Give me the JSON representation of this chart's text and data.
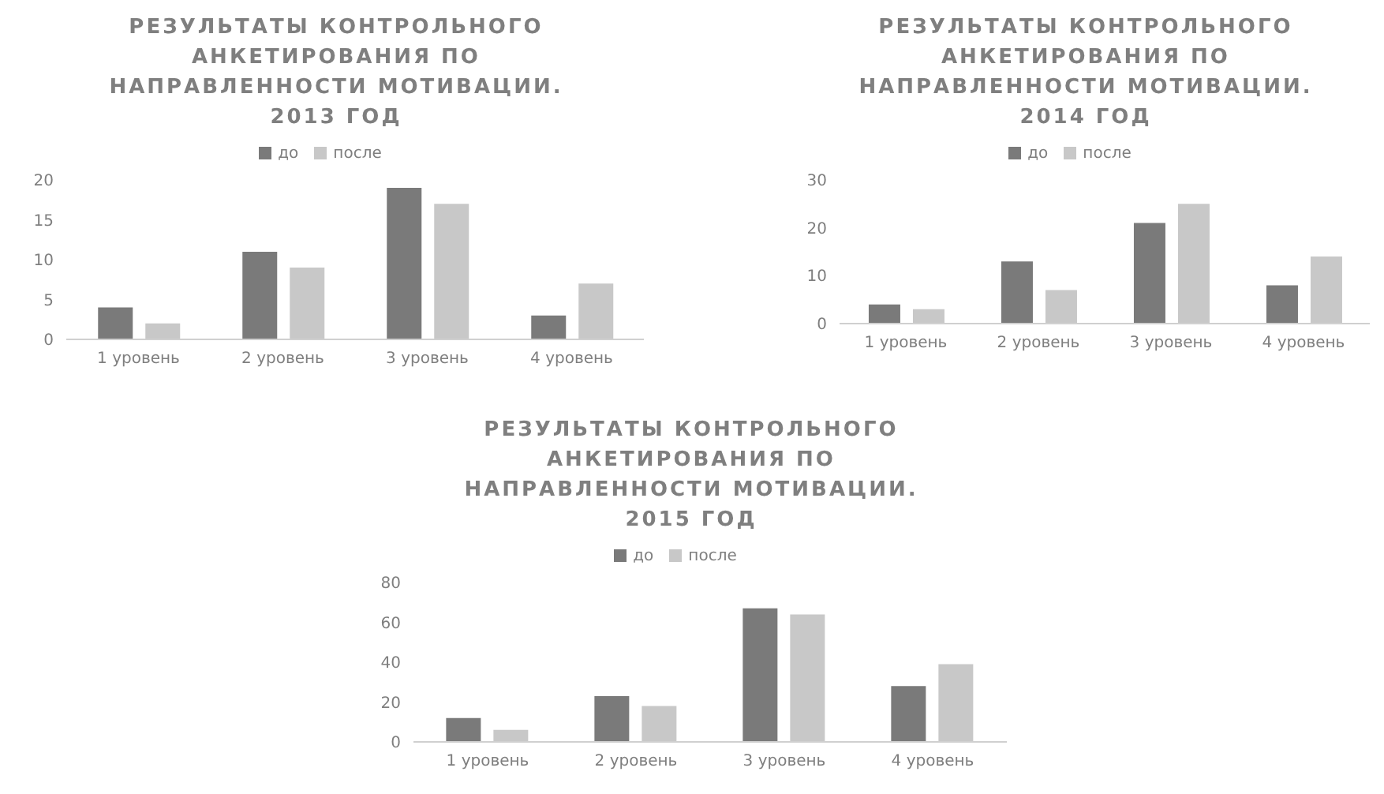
{
  "chart_data": [
    {
      "type": "bar",
      "title": "РЕЗУЛЬТАТЫ КОНТРОЛЬНОГО АНКЕТИРОВАНИЯ ПО НАПРАВЛЕННОСТИ МОТИВАЦИИ. 2013 ГОД",
      "categories": [
        "1 уровень",
        "2 уровень",
        "3 уровень",
        "4 уровень"
      ],
      "series": [
        {
          "name": "до",
          "color": "#7a7a7a",
          "values": [
            4,
            11,
            19,
            3
          ]
        },
        {
          "name": "после",
          "color": "#c8c8c8",
          "values": [
            2,
            9,
            17,
            7
          ]
        }
      ],
      "ylim": [
        0,
        20
      ],
      "yticks": [
        0,
        5,
        10,
        15,
        20
      ],
      "grid": false,
      "legend": "top"
    },
    {
      "type": "bar",
      "title": "РЕЗУЛЬТАТЫ КОНТРОЛЬНОГО АНКЕТИРОВАНИЯ ПО НАПРАВЛЕННОСТИ МОТИВАЦИИ. 2014 ГОД",
      "categories": [
        "1 уровень",
        "2 уровень",
        "3 уровень",
        "4 уровень"
      ],
      "series": [
        {
          "name": "до",
          "color": "#7a7a7a",
          "values": [
            4,
            13,
            21,
            8
          ]
        },
        {
          "name": "после",
          "color": "#c8c8c8",
          "values": [
            3,
            7,
            25,
            14
          ]
        }
      ],
      "ylim": [
        0,
        30
      ],
      "yticks": [
        0,
        10,
        20,
        30
      ],
      "grid": false,
      "legend": "top"
    },
    {
      "type": "bar",
      "title": "РЕЗУЛЬТАТЫ КОНТРОЛЬНОГО АНКЕТИРОВАНИЯ ПО НАПРАВЛЕННОСТИ МОТИВАЦИИ. 2015 ГОД",
      "categories": [
        "1 уровень",
        "2 уровень",
        "3 уровень",
        "4 уровень"
      ],
      "series": [
        {
          "name": "до",
          "color": "#7a7a7a",
          "values": [
            12,
            23,
            67,
            28
          ]
        },
        {
          "name": "после",
          "color": "#c8c8c8",
          "values": [
            6,
            18,
            64,
            39
          ]
        }
      ],
      "ylim": [
        0,
        80
      ],
      "yticks": [
        0,
        20,
        40,
        60,
        80
      ],
      "grid": false,
      "legend": "top"
    }
  ]
}
